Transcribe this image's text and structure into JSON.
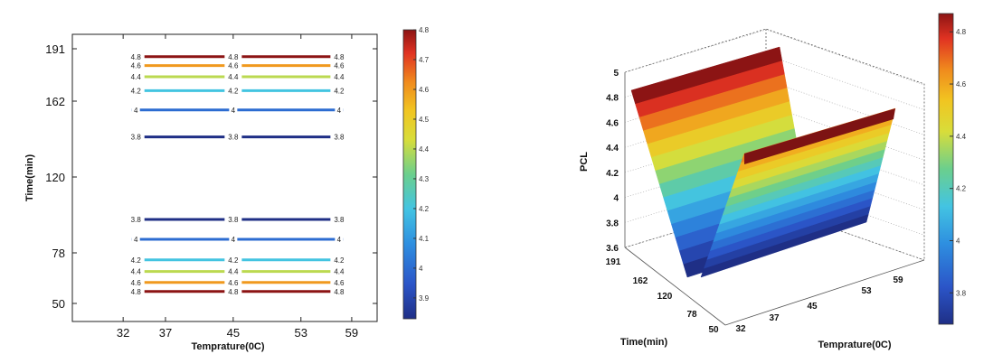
{
  "chart_data": [
    {
      "type": "contour",
      "xlabel": "Temprature(0C)",
      "ylabel": "Time(min)",
      "x_ticks": [
        "32",
        "37",
        "45",
        "53",
        "59"
      ],
      "y_ticks": [
        "50",
        "78",
        "120",
        "162",
        "191"
      ],
      "xlim": [
        26,
        62
      ],
      "ylim": [
        40,
        199
      ],
      "colorbar": {
        "ticks": [
          "3.9",
          "4",
          "4.1",
          "4.2",
          "4.3",
          "4.4",
          "4.5",
          "4.6",
          "4.7",
          "4.8"
        ],
        "range": [
          3.83,
          4.8
        ]
      },
      "levels": [
        {
          "time": 186.6,
          "level": "4.8",
          "value": 4.8
        },
        {
          "time": 181.7,
          "level": "4.6",
          "value": 4.6
        },
        {
          "time": 175.5,
          "level": "4.4",
          "value": 4.4
        },
        {
          "time": 167.8,
          "level": "4.2",
          "value": 4.2
        },
        {
          "time": 157.1,
          "level": "4",
          "value": 4.0
        },
        {
          "time": 142.2,
          "level": "3.8",
          "value": 3.8
        },
        {
          "time": 96.5,
          "level": "3.8",
          "value": 3.8
        },
        {
          "time": 85.5,
          "level": "4",
          "value": 4.0
        },
        {
          "time": 74.1,
          "level": "4.2",
          "value": 4.2
        },
        {
          "time": 67.7,
          "level": "4.4",
          "value": 4.4
        },
        {
          "time": 61.6,
          "level": "4.6",
          "value": 4.6
        },
        {
          "time": 56.6,
          "level": "4.8",
          "value": 4.8
        }
      ],
      "label_x": [
        33.5,
        45,
        57.5
      ],
      "line_x": [
        33,
        58
      ]
    },
    {
      "type": "surface",
      "zlabel": "PCL",
      "ylabel": "Time(min)",
      "xlabel": "Temprature(0C)",
      "z_ticks": [
        "3.6",
        "3.8",
        "4",
        "4.2",
        "4.4",
        "4.6",
        "4.8",
        "5"
      ],
      "time_ticks": [
        "191",
        "162",
        "120",
        "78",
        "50"
      ],
      "temp_ticks": [
        "32",
        "37",
        "45",
        "53",
        "59"
      ],
      "zlim": [
        3.6,
        5.0
      ],
      "colorbar": {
        "ticks": [
          "3.8",
          "4",
          "4.2",
          "4.4",
          "4.6",
          "4.8"
        ],
        "range": [
          3.68,
          4.87
        ]
      },
      "surface_min": 3.63,
      "surface_max_high_time": 4.92,
      "surface_max_low_time": 4.7
    }
  ]
}
